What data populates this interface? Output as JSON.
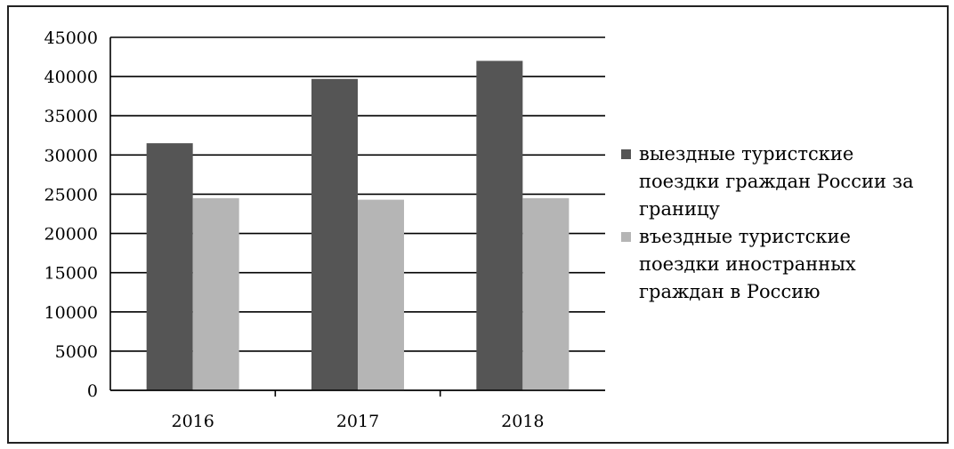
{
  "chart_data": {
    "type": "bar",
    "categories": [
      "2016",
      "2017",
      "2018"
    ],
    "series": [
      {
        "name": "выездные туристские поездки граждан России за границу",
        "values": [
          31500,
          39700,
          42000
        ],
        "color": "#555555"
      },
      {
        "name": "въездные туристские поездки иностранных граждан в Россию",
        "values": [
          24500,
          24300,
          24500
        ],
        "color": "#b5b5b5"
      }
    ],
    "title": "",
    "xlabel": "",
    "ylabel": "",
    "ylim": [
      0,
      45000
    ],
    "yticks": [
      "0",
      "5000",
      "10000",
      "15000",
      "20000",
      "25000",
      "30000",
      "35000",
      "40000",
      "45000"
    ],
    "grid": true,
    "legend_position": "right",
    "legend": [
      [
        "выездные туристские",
        "поездки граждан России за",
        "границу"
      ],
      [
        "въездные туристские",
        "поездки иностранных",
        "граждан в Россию"
      ]
    ]
  }
}
